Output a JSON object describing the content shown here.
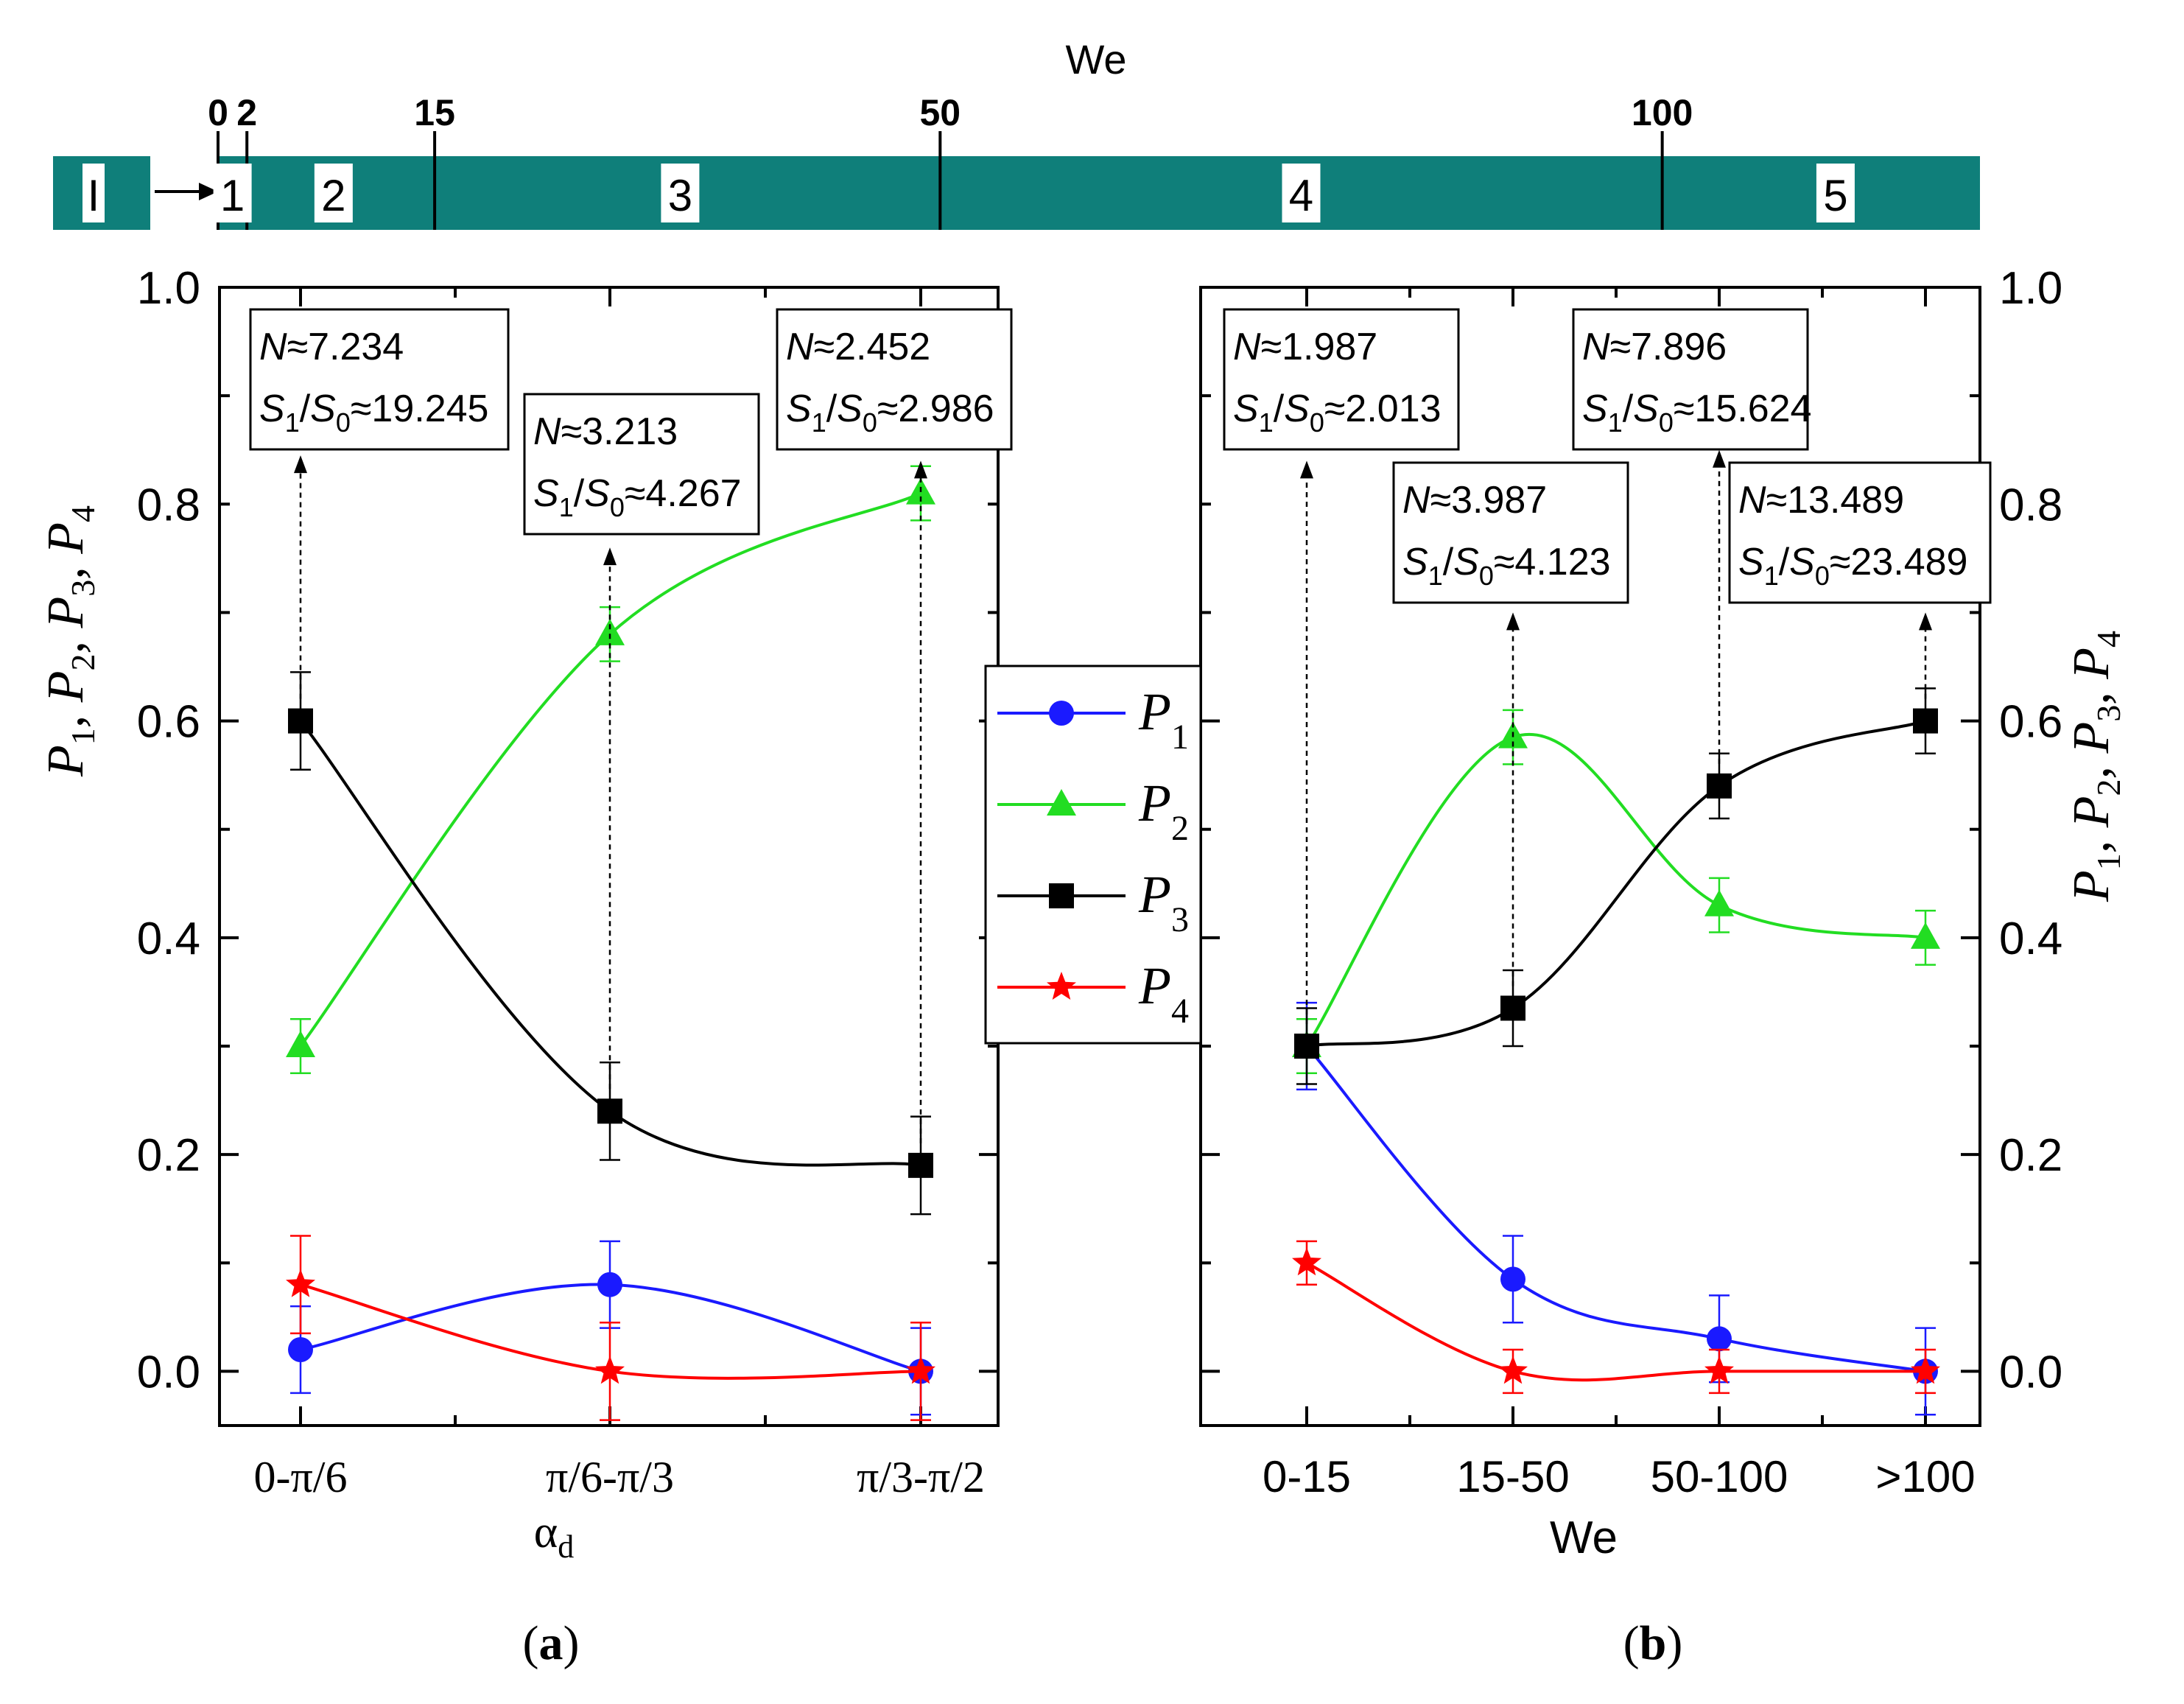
{
  "colors": {
    "p1": "#1a1aff",
    "p2": "#22dd22",
    "p3": "#000000",
    "p4": "#ff0000",
    "band": "#0f7f7a",
    "axis": "#000000",
    "ann": "#000000"
  },
  "band": {
    "title": "We",
    "tick_labels": [
      "0",
      "2",
      "15",
      "50",
      "100"
    ],
    "tick_values": [
      0,
      2,
      15,
      50,
      100
    ],
    "start_label": "I",
    "regimes": [
      "1",
      "2",
      "3",
      "4",
      "5"
    ],
    "regime_positions": [
      1,
      8,
      32,
      75,
      112
    ],
    "range": [
      0,
      122
    ]
  },
  "legend": {
    "items": [
      {
        "key": "p1",
        "base": "P",
        "sub": "1",
        "marker": "circle"
      },
      {
        "key": "p2",
        "base": "P",
        "sub": "2",
        "marker": "triangle"
      },
      {
        "key": "p3",
        "base": "P",
        "sub": "3",
        "marker": "square"
      },
      {
        "key": "p4",
        "base": "P",
        "sub": "4",
        "marker": "star"
      }
    ]
  },
  "panels": {
    "a": {
      "label": "(a)",
      "label_letter": "a"
    },
    "b": {
      "label": "(b)",
      "label_letter": "b"
    }
  },
  "chart_data": [
    {
      "type": "line",
      "panel": "a",
      "xlabel": "α",
      "xlabel_sub": "d",
      "ylabel": "P1, P2, P3, P4",
      "ylabel_parts": [
        [
          "P",
          "1"
        ],
        [
          "P",
          "2"
        ],
        [
          "P",
          "3"
        ],
        [
          "P",
          "4"
        ]
      ],
      "categories": [
        "0-π/6",
        "π/6-π/3",
        "π/3-π/2"
      ],
      "ylim": [
        -0.05,
        1.0
      ],
      "yticks": [
        0.0,
        0.2,
        0.4,
        0.6,
        0.8,
        1.0
      ],
      "ytick_labels": [
        "0.0",
        "0.2",
        "0.4",
        "0.6",
        "0.8",
        "1.0"
      ],
      "series": [
        {
          "name": "P1",
          "key": "p1",
          "marker": "circle",
          "values": [
            0.02,
            0.08,
            0.0
          ],
          "errors": [
            0.04,
            0.04,
            0.04
          ]
        },
        {
          "name": "P2",
          "key": "p2",
          "marker": "triangle",
          "values": [
            0.3,
            0.68,
            0.81
          ],
          "errors": [
            0.025,
            0.025,
            0.025
          ]
        },
        {
          "name": "P3",
          "key": "p3",
          "marker": "square",
          "values": [
            0.6,
            0.24,
            0.19
          ],
          "errors": [
            0.045,
            0.045,
            0.045
          ]
        },
        {
          "name": "P4",
          "key": "p4",
          "marker": "star",
          "values": [
            0.08,
            0.0,
            0.0
          ],
          "errors": [
            0.045,
            0.045,
            0.045
          ]
        }
      ],
      "annotations": [
        {
          "category": 0,
          "n_label": "N",
          "n_value": "≈7.234",
          "s_label": "S",
          "s_sub1": "1",
          "s_sep": "/S",
          "s_sub0": "0",
          "s_value": "≈19.245",
          "arrow_from": 0.6,
          "arrow_to": 0.845
        },
        {
          "category": 1,
          "n_label": "N",
          "n_value": "≈3.213",
          "s_label": "S",
          "s_sub1": "1",
          "s_sep": "/S",
          "s_sub0": "0",
          "s_value": "≈4.267",
          "arrow_from": 0.24,
          "arrow_to": 0.76
        },
        {
          "category": 2,
          "n_label": "N",
          "n_value": "≈2.452",
          "s_label": "S",
          "s_sub1": "1",
          "s_sep": "/S",
          "s_sub0": "0",
          "s_value": "≈2.986",
          "arrow_from": 0.19,
          "arrow_to": 0.84
        }
      ]
    },
    {
      "type": "line",
      "panel": "b",
      "xlabel": "We",
      "ylabel": "P1, P2, P3, P4",
      "ylabel_parts": [
        [
          "P",
          "1"
        ],
        [
          "P",
          "2"
        ],
        [
          "P",
          "3"
        ],
        [
          "P",
          "4"
        ]
      ],
      "categories": [
        "0-15",
        "15-50",
        "50-100",
        ">100"
      ],
      "ylim": [
        -0.05,
        1.0
      ],
      "yticks": [
        0.0,
        0.2,
        0.4,
        0.6,
        0.8,
        1.0
      ],
      "ytick_labels": [
        "0.0",
        "0.2",
        "0.4",
        "0.6",
        "0.8",
        "1.0"
      ],
      "series": [
        {
          "name": "P1",
          "key": "p1",
          "marker": "circle",
          "values": [
            0.3,
            0.085,
            0.03,
            0.0
          ],
          "errors": [
            0.04,
            0.04,
            0.04,
            0.04
          ]
        },
        {
          "name": "P2",
          "key": "p2",
          "marker": "triangle",
          "values": [
            0.3,
            0.585,
            0.43,
            0.4
          ],
          "errors": [
            0.025,
            0.025,
            0.025,
            0.025
          ]
        },
        {
          "name": "P3",
          "key": "p3",
          "marker": "square",
          "values": [
            0.3,
            0.335,
            0.54,
            0.6
          ],
          "errors": [
            0.035,
            0.035,
            0.03,
            0.03
          ]
        },
        {
          "name": "P4",
          "key": "p4",
          "marker": "star",
          "values": [
            0.1,
            0.0,
            0.0,
            0.0
          ],
          "errors": [
            0.02,
            0.02,
            0.02,
            0.02
          ]
        }
      ],
      "annotations": [
        {
          "category": 0,
          "n_label": "N",
          "n_value": "≈1.987",
          "s_label": "S",
          "s_sub1": "1",
          "s_sep": "/S",
          "s_sub0": "0",
          "s_value": "≈2.013",
          "arrow_from": 0.3,
          "arrow_to": 0.84
        },
        {
          "category": 1,
          "n_label": "N",
          "n_value": "≈3.987",
          "s_label": "S",
          "s_sub1": "1",
          "s_sep": "/S",
          "s_sub0": "0",
          "s_value": "≈4.123",
          "arrow_from": 0.335,
          "arrow_to": 0.7
        },
        {
          "category": 2,
          "n_label": "N",
          "n_value": "≈7.896",
          "s_label": "S",
          "s_sub1": "1",
          "s_sep": "/S",
          "s_sub0": "0",
          "s_value": "≈15.624",
          "arrow_from": 0.54,
          "arrow_to": 0.85
        },
        {
          "category": 3,
          "n_label": "N",
          "n_value": "≈13.489",
          "s_label": "S",
          "s_sub1": "1",
          "s_sep": "/S",
          "s_sub0": "0",
          "s_value": "≈23.489",
          "arrow_from": 0.6,
          "arrow_to": 0.7
        }
      ]
    }
  ]
}
